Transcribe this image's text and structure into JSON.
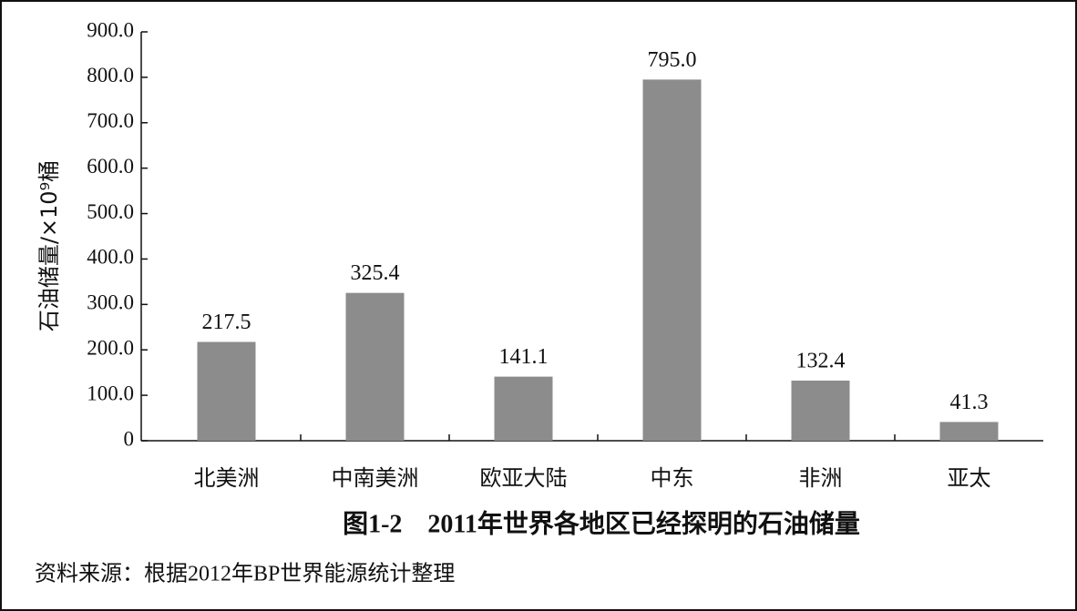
{
  "chart_data": {
    "type": "bar",
    "title": "图1-2　2011年世界各地区已经探明的石油储量",
    "y_label": "石油储量/×10⁹桶",
    "source": "资料来源：根据2012年BP世界能源统计整理",
    "categories": [
      "北美洲",
      "中南美洲",
      "欧亚大陆",
      "中东",
      "非洲",
      "亚太"
    ],
    "values": [
      217.5,
      325.4,
      141.1,
      795,
      132.4,
      41.3
    ],
    "value_labels": [
      "217.5",
      "325.4",
      "141.1",
      "795.0",
      "132.4",
      "41.3"
    ],
    "color": "#8c8c8c",
    "ylim": [
      0,
      900
    ],
    "yticks": [
      0,
      {
        "value": 100,
        "label": "100.0"
      },
      {
        "value": 200,
        "label": "200.0"
      },
      {
        "value": 300,
        "label": "300.0"
      },
      {
        "value": 400,
        "label": "400.0"
      },
      {
        "value": 500,
        "label": "500.0"
      },
      {
        "value": 600,
        "label": "600.0"
      },
      {
        "value": 700,
        "label": "700.0"
      },
      {
        "value": 800,
        "label": "800.0"
      },
      {
        "value": 900,
        "label": "900.0"
      }
    ],
    "grid": false
  }
}
